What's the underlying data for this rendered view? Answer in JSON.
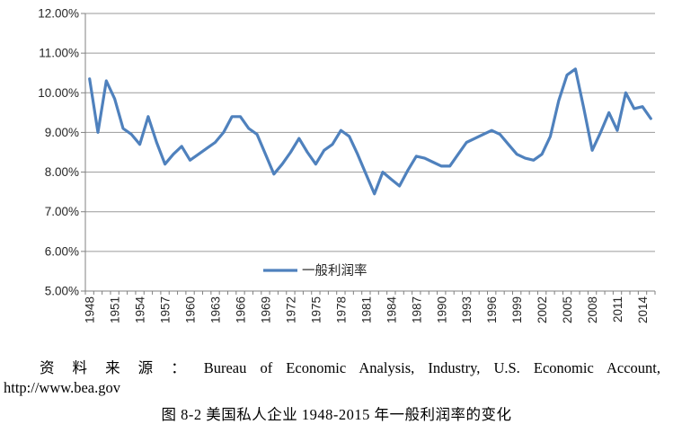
{
  "chart_data": {
    "type": "line",
    "title": "",
    "xlabel": "",
    "ylabel": "",
    "ylim": [
      5,
      12
    ],
    "y_tick_labels": [
      "5.00%",
      "6.00%",
      "7.00%",
      "8.00%",
      "9.00%",
      "10.00%",
      "11.00%",
      "12.00%"
    ],
    "x_first_year": 1948,
    "x_last_year": 2015,
    "x_label_interval": 3,
    "x_tick_labels": [
      "1948",
      "1951",
      "1954",
      "1957",
      "1960",
      "1963",
      "1966",
      "1969",
      "1972",
      "1975",
      "1978",
      "1981",
      "1984",
      "1987",
      "1990",
      "1993",
      "1996",
      "1999",
      "2002",
      "2005",
      "2008",
      "2011",
      "2014"
    ],
    "grid": "horizontal",
    "legend_position": "inside-bottom-center",
    "series": [
      {
        "name": "一般利润率",
        "color": "#4F81BD",
        "x": [
          1948,
          1949,
          1950,
          1951,
          1952,
          1953,
          1954,
          1955,
          1956,
          1957,
          1958,
          1959,
          1960,
          1961,
          1962,
          1963,
          1964,
          1965,
          1966,
          1967,
          1968,
          1969,
          1970,
          1971,
          1972,
          1973,
          1974,
          1975,
          1976,
          1977,
          1978,
          1979,
          1980,
          1981,
          1982,
          1983,
          1984,
          1985,
          1986,
          1987,
          1988,
          1989,
          1990,
          1991,
          1992,
          1993,
          1994,
          1995,
          1996,
          1997,
          1998,
          1999,
          2000,
          2001,
          2002,
          2003,
          2004,
          2005,
          2006,
          2007,
          2008,
          2009,
          2010,
          2011,
          2012,
          2013,
          2014,
          2015
        ],
        "values": [
          10.35,
          9.0,
          10.3,
          9.85,
          9.1,
          8.95,
          8.7,
          9.4,
          8.75,
          8.2,
          8.45,
          8.65,
          8.3,
          8.45,
          8.6,
          8.75,
          9.0,
          9.4,
          9.4,
          9.1,
          8.95,
          8.45,
          7.95,
          8.2,
          8.5,
          8.85,
          8.5,
          8.2,
          8.55,
          8.7,
          9.05,
          8.9,
          8.45,
          7.95,
          7.45,
          8.0,
          7.82,
          7.65,
          8.05,
          8.4,
          8.35,
          8.25,
          8.15,
          8.15,
          8.45,
          8.75,
          8.85,
          8.95,
          9.05,
          8.95,
          8.7,
          8.45,
          8.35,
          8.3,
          8.45,
          8.9,
          9.8,
          10.45,
          10.6,
          9.6,
          8.55,
          9.0,
          9.5,
          9.05,
          10.0,
          9.6,
          9.65,
          9.35
        ]
      }
    ]
  },
  "legend": {
    "label": "一般利润率"
  },
  "colors": {
    "line": "#4F81BD",
    "gridline": "#9a9a9a",
    "axis": "#808080",
    "tick_text": "#262626"
  },
  "source_note": {
    "line1": "资 料 来 源 ： Bureau of Economic Analysis, Industry, U.S. Economic Account,",
    "line2": "http://www.bea.gov"
  },
  "caption": "图 8-2 美国私人企业 1948-2015 年一般利润率的变化"
}
